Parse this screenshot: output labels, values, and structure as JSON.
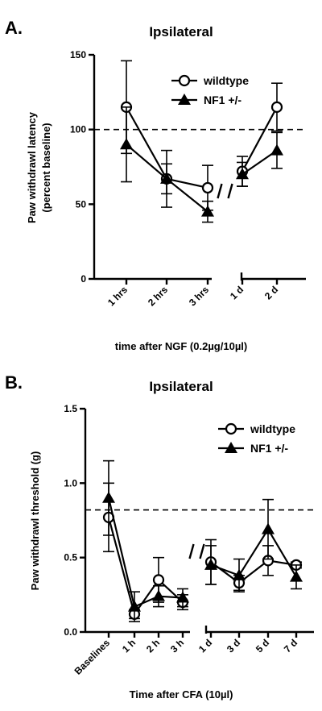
{
  "chart_data": [
    {
      "type": "line",
      "panel_label": "A.",
      "title": "Ipsilateral",
      "xlabel": "time after NGF (0.2µg/10µl)",
      "ylabel": "Paw withdrawl latency\n(percent baseline)",
      "ylim": [
        0,
        150
      ],
      "yticks": [
        0,
        50,
        100,
        150
      ],
      "categories": [
        "1 hrs",
        "2 hrs",
        "3 hrs",
        "1 d",
        "2 d"
      ],
      "axis_break_after_index": 2,
      "reference_line": {
        "y": 100,
        "style": "dashed"
      },
      "legend_position": "top-right",
      "series": [
        {
          "name": "wildtype",
          "marker": "open-circle",
          "values": [
            115,
            67,
            61,
            72,
            115
          ],
          "error": [
            31,
            10,
            15,
            10,
            16
          ]
        },
        {
          "name": "NF1 +/-",
          "marker": "filled-triangle",
          "values": [
            90,
            67,
            45,
            70,
            86
          ],
          "error": [
            25,
            19,
            7,
            8,
            12
          ]
        }
      ]
    },
    {
      "type": "line",
      "panel_label": "B.",
      "title": "Ipsilateral",
      "xlabel": "Time after CFA (10µl)",
      "ylabel": "Paw withdrawl threshold (g)",
      "ylim": [
        0,
        1.5
      ],
      "yticks": [
        "0.0",
        "0.5",
        "1.0",
        "1.5"
      ],
      "categories": [
        "Baselines",
        "1 h",
        "2 h",
        "3 h",
        "1 d",
        "3 d",
        "5 d",
        "7 d"
      ],
      "axis_break_after_index": 3,
      "reference_line": {
        "y": 0.82,
        "style": "dashed"
      },
      "legend_position": "top-right",
      "series": [
        {
          "name": "wildtype",
          "marker": "open-circle",
          "values": [
            0.77,
            0.12,
            0.35,
            0.2,
            0.47,
            0.33,
            0.48,
            0.45
          ],
          "error": [
            0.23,
            0.03,
            0.15,
            0.05,
            0.15,
            0.05,
            0.1,
            0.02
          ]
        },
        {
          "name": "NF1 +/-",
          "marker": "filled-triangle",
          "values": [
            0.9,
            0.17,
            0.24,
            0.23,
            0.45,
            0.38,
            0.69,
            0.37
          ],
          "error": [
            0.25,
            0.1,
            0.07,
            0.06,
            0.13,
            0.11,
            0.2,
            0.08
          ]
        }
      ]
    }
  ]
}
